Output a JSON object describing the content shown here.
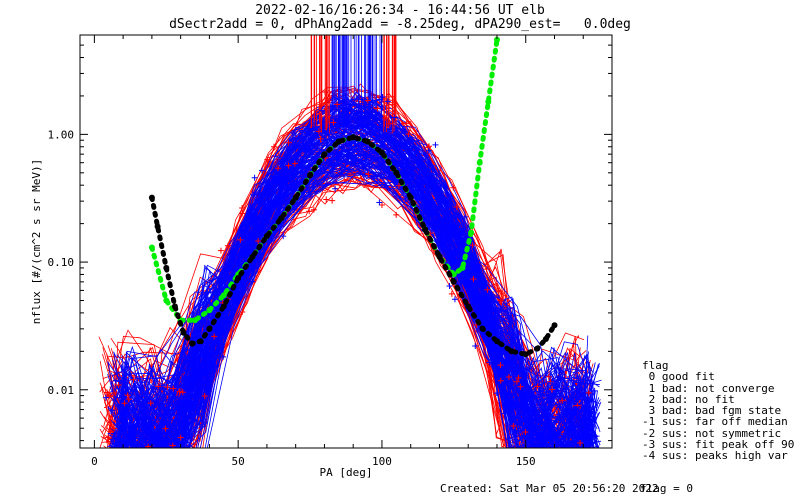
{
  "header": {
    "line1": "2022-02-16/16:26:34 - 16:44:56 UT elb",
    "line2": "dSectr2add = 0, dPhAng2add = -8.25deg, dPA290_est=   0.0deg"
  },
  "legend": {
    "title": "flag",
    "items": [
      " 0 good fit",
      " 1 bad: not converge",
      " 2 bad: no fit",
      " 3 bad: bad fgm state",
      "-1 sus: far off median",
      "-2 sus: not symmetric",
      "-3 sus: fit peak off 90",
      "-4 sus: peaks high var"
    ]
  },
  "footer": {
    "created": "Created: Sat Mar 05 20:56:20 2022",
    "flag": "flag = 0"
  },
  "colors": {
    "red_series": "#ff0000",
    "blue_series": "#0000ff",
    "green_fit": "#00ee00",
    "black_fit": "#000000",
    "axes": "#000000",
    "background": "#ffffff"
  },
  "chart_data": {
    "type": "line",
    "title": "",
    "xlabel": "PA [deg]",
    "ylabel": "nflux [#/(cm^2 s sr MeV)]",
    "xlim": [
      -5,
      180
    ],
    "ylim": [
      0.0035,
      6.0
    ],
    "yscale": "log",
    "grid": false,
    "x_ticks": [
      0,
      50,
      100,
      150
    ],
    "y_ticks": [
      {
        "value": 0.01,
        "label": "0.01"
      },
      {
        "value": 0.1,
        "label": "0.10"
      },
      {
        "value": 1.0,
        "label": "1.00"
      }
    ],
    "series": [
      {
        "name": "",
        "color": "#00ee00",
        "marker": "circle",
        "x": [
          20,
          25,
          30,
          35,
          40,
          45,
          50,
          55,
          60,
          65,
          70,
          75,
          80,
          85,
          90,
          95,
          100,
          105,
          110,
          115,
          120,
          125,
          128,
          131,
          134,
          137,
          140
        ],
        "y": [
          0.13,
          0.05,
          0.035,
          0.035,
          0.042,
          0.055,
          0.08,
          0.11,
          0.16,
          0.22,
          0.32,
          0.48,
          0.7,
          0.88,
          0.95,
          0.88,
          0.72,
          0.5,
          0.32,
          0.18,
          0.11,
          0.08,
          0.09,
          0.17,
          0.6,
          1.8,
          5.5
        ]
      },
      {
        "name": "",
        "color": "#000000",
        "marker": "circle",
        "x": [
          20,
          22,
          25,
          28,
          31,
          34,
          37,
          40,
          45,
          50,
          55,
          60,
          65,
          70,
          75,
          80,
          85,
          90,
          95,
          100,
          105,
          110,
          115,
          120,
          125,
          130,
          135,
          140,
          145,
          150,
          154,
          157,
          160
        ],
        "y": [
          0.32,
          0.19,
          0.09,
          0.045,
          0.028,
          0.023,
          0.024,
          0.03,
          0.045,
          0.075,
          0.11,
          0.16,
          0.22,
          0.32,
          0.48,
          0.7,
          0.88,
          0.95,
          0.88,
          0.72,
          0.5,
          0.32,
          0.18,
          0.11,
          0.07,
          0.045,
          0.03,
          0.024,
          0.02,
          0.019,
          0.021,
          0.025,
          0.032
        ]
      }
    ]
  }
}
